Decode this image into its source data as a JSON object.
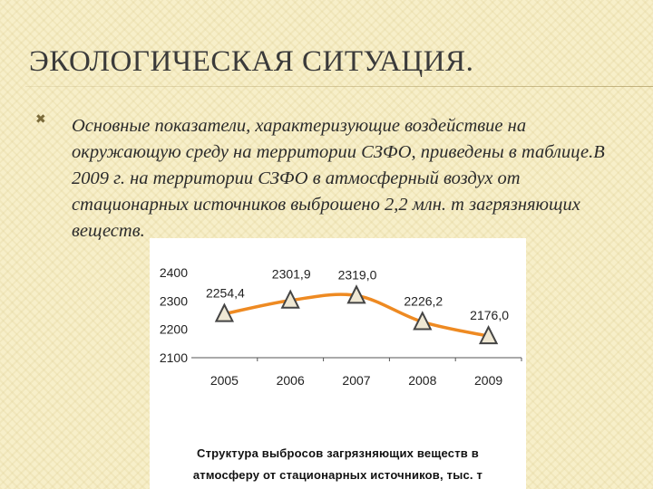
{
  "slide": {
    "title": "ЭКОЛОГИЧЕСКАЯ СИТУАЦИЯ.",
    "bullet_icon": "cross-bullet-icon",
    "bullet_glyph": "✖",
    "body": "Основные показатели, характеризующие воздействие на окружающую среду на территории СЗФО, приведены в таблице.В 2009 г. на территории СЗФО в атмосферный воздух от стационарных источников выброшено 2,2 млн. т загрязняющих веществ."
  },
  "colors": {
    "background": "#f7efc9",
    "line": "#ee8a22",
    "marker_fill": "#efe8d4",
    "marker_stroke": "#444444"
  },
  "chart_data": {
    "type": "line",
    "title": "Структура выбросов загрязняющих веществ в атмосферу от стационарных источников, тыс. т",
    "title_lines": [
      "Структура выбросов загрязняющих веществ в",
      "атмосферу от стационарных источников, тыс. т"
    ],
    "categories": [
      "2005",
      "2006",
      "2007",
      "2008",
      "2009"
    ],
    "values": [
      2254.4,
      2301.9,
      2319.0,
      2226.2,
      2176.0
    ],
    "data_labels": [
      "2254,4",
      "2301,9",
      "2319,0",
      "2226,2",
      "2176,0"
    ],
    "y_ticks": [
      "2100",
      "2200",
      "2300",
      "2400"
    ],
    "ylim": [
      2100,
      2400
    ],
    "grid": false,
    "legend": "none",
    "marker": "triangle"
  }
}
